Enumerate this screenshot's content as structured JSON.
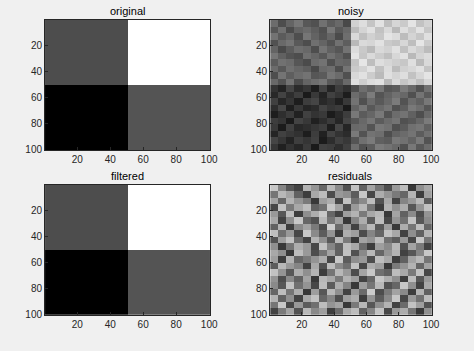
{
  "chart_data": [
    {
      "type": "image",
      "title": "original",
      "x": [
        0.5,
        50.5,
        100.5
      ],
      "y": [
        0.5,
        50.5,
        100.5
      ],
      "cells": [
        [
          30,
          100
        ],
        [
          0,
          33
        ]
      ],
      "zlim": [
        0,
        100
      ],
      "xlim": [
        0.5,
        100.5
      ],
      "ylim": [
        0.5,
        100.5
      ],
      "xticks": [
        20,
        40,
        60,
        80,
        100
      ],
      "yticks": [
        20,
        40,
        60,
        80,
        100
      ]
    },
    {
      "type": "image",
      "title": "noisy",
      "x": [
        0.5,
        5.5,
        10.5,
        15.5,
        20.5,
        25.5,
        30.5,
        35.5,
        40.5,
        45.5,
        50.5,
        55.5,
        60.5,
        65.5,
        70.5,
        75.5,
        80.5,
        85.5,
        90.5,
        95.5,
        100.5
      ],
      "y": [
        0.5,
        5.5,
        10.5,
        15.5,
        20.5,
        25.5,
        30.5,
        35.5,
        40.5,
        45.5,
        50.5,
        55.5,
        60.5,
        65.5,
        70.5,
        75.5,
        80.5,
        85.5,
        90.5,
        95.5,
        100.5
      ],
      "cells": [
        [
          38,
          18,
          33,
          44,
          25,
          21,
          41,
          28,
          36,
          16,
          101,
          109,
          93,
          112,
          89,
          104,
          97,
          113,
          92,
          102
        ],
        [
          24,
          40,
          17,
          32,
          37,
          29,
          20,
          45,
          26,
          35,
          88,
          103,
          111,
          92,
          106,
          86,
          109,
          98,
          112,
          95
        ],
        [
          42,
          27,
          35,
          19,
          44,
          32,
          23,
          34,
          17,
          39,
          106,
          90,
          101,
          95,
          113,
          108,
          88,
          103,
          94,
          110
        ],
        [
          21,
          36,
          43,
          26,
          18,
          40,
          33,
          22,
          41,
          29,
          86,
          107,
          104,
          112,
          97,
          93,
          105,
          89,
          114,
          98
        ],
        [
          33,
          16,
          28,
          39,
          35,
          19,
          43,
          31,
          24,
          42,
          108,
          96,
          87,
          106,
          102,
          111,
          91,
          107,
          99,
          88
        ],
        [
          44,
          31,
          22,
          18,
          40,
          34,
          25,
          41,
          32,
          21,
          113,
          94,
          107,
          98,
          90,
          105,
          112,
          86,
          103,
          108
        ],
        [
          28,
          41,
          37,
          24,
          17,
          38,
          42,
          20,
          35,
          33,
          93,
          114,
          89,
          109,
          104,
          99,
          95,
          110,
          87,
          106
        ],
        [
          37,
          25,
          40,
          34,
          29,
          16,
          36,
          39,
          19,
          43,
          97,
          102,
          112,
          91,
          108,
          88,
          101,
          105,
          111,
          93
        ],
        [
          19,
          43,
          29,
          38,
          42,
          24,
          27,
          44,
          37,
          20,
          105,
          111,
          98,
          87,
          110,
          103,
          109,
          92,
          104,
          113
        ],
        [
          35,
          22,
          42,
          17,
          33,
          39,
          44,
          25,
          18,
          36,
          110,
          99,
          108,
          111,
          86,
          107,
          94,
          102,
          90,
          104
        ],
        [
          2,
          -8,
          13,
          -3,
          4,
          -11,
          12,
          -7,
          9,
          1,
          19,
          39,
          31,
          44,
          24,
          28,
          47,
          36,
          21,
          41
        ],
        [
          -5,
          12,
          -2,
          9,
          -14,
          6,
          -8,
          11,
          3,
          -12,
          38,
          29,
          48,
          23,
          32,
          40,
          35,
          20,
          43,
          27
        ],
        [
          10,
          -6,
          3,
          -12,
          8,
          13,
          -5,
          1,
          -10,
          6,
          42,
          20,
          37,
          26,
          35,
          47,
          22,
          38,
          30,
          45
        ],
        [
          -2,
          14,
          -11,
          5,
          -7,
          -3,
          12,
          4,
          7,
          -14,
          32,
          44,
          25,
          36,
          43,
          21,
          29,
          46,
          39,
          24
        ],
        [
          -12,
          -1,
          7,
          -9,
          11,
          2,
          6,
          -13,
          -4,
          8,
          45,
          27,
          34,
          46,
          22,
          38,
          42,
          31,
          19,
          36
        ],
        [
          8,
          3,
          -14,
          12,
          5,
          -10,
          -2,
          7,
          -6,
          13,
          24,
          35,
          44,
          28,
          37,
          43,
          21,
          25,
          34,
          47
        ],
        [
          6,
          -13,
          10,
          -5,
          -1,
          4,
          9,
          -11,
          14,
          -7,
          36,
          38,
          23,
          45,
          41,
          20,
          27,
          40,
          44,
          31
        ],
        [
          -7,
          11,
          5,
          1,
          -12,
          8,
          -9,
          12,
          2,
          -3,
          46,
          22,
          42,
          39,
          19,
          32,
          37,
          43,
          28,
          40
        ],
        [
          13,
          4,
          -8,
          9,
          3,
          10,
          -13,
          -2,
          11,
          5,
          23,
          40,
          47,
          30,
          27,
          45,
          41,
          32,
          46,
          22
        ],
        [
          4,
          -10,
          2,
          -6,
          7,
          -14,
          11,
          8,
          -1,
          10,
          39,
          21,
          28,
          47,
          42,
          36,
          20,
          45,
          25,
          38
        ]
      ],
      "zlim": [
        -30,
        130
      ],
      "xlim": [
        0.5,
        100.5
      ],
      "ylim": [
        0.5,
        100.5
      ],
      "xticks": [
        20,
        40,
        60,
        80,
        100
      ],
      "yticks": [
        20,
        40,
        60,
        80,
        100
      ]
    },
    {
      "type": "image",
      "title": "filtered",
      "x": [
        0.5,
        50.5,
        100.5
      ],
      "y": [
        0.5,
        50.5,
        100.5
      ],
      "cells": [
        [
          30,
          100
        ],
        [
          0,
          33
        ]
      ],
      "zlim": [
        0,
        100
      ],
      "xlim": [
        0.5,
        100.5
      ],
      "ylim": [
        0.5,
        100.5
      ],
      "xticks": [
        20,
        40,
        60,
        80,
        100
      ],
      "yticks": [
        20,
        40,
        60,
        80,
        100
      ]
    },
    {
      "type": "image",
      "title": "residuals",
      "x": [
        0.5,
        5.5,
        10.5,
        15.5,
        20.5,
        25.5,
        30.5,
        35.5,
        40.5,
        45.5,
        50.5,
        55.5,
        60.5,
        65.5,
        70.5,
        75.5,
        80.5,
        85.5,
        90.5,
        95.5,
        100.5
      ],
      "y": [
        0.5,
        5.5,
        10.5,
        15.5,
        20.5,
        25.5,
        30.5,
        35.5,
        40.5,
        45.5,
        50.5,
        55.5,
        60.5,
        65.5,
        70.5,
        75.5,
        80.5,
        85.5,
        90.5,
        95.5,
        100.5
      ],
      "cells": [
        [
          14,
          1,
          -8,
          -12,
          10,
          4,
          -5,
          11,
          2,
          -9,
          13,
          -6,
          7,
          -2,
          -10,
          5,
          12,
          -14,
          3,
          8
        ],
        [
          -2,
          11,
          7,
          -6,
          -13,
          8,
          12,
          -10,
          5,
          3,
          -7,
          14,
          -11,
          9,
          4,
          -1,
          -5,
          10,
          -13,
          6
        ],
        [
          7,
          -5,
          10,
          4,
          -1,
          -14,
          6,
          9,
          -11,
          13,
          -3,
          2,
          12,
          -9,
          8,
          -12,
          1,
          5,
          11,
          -7
        ],
        [
          -11,
          13,
          -1,
          8,
          12,
          -6,
          -3,
          14,
          7,
          -10,
          5,
          11,
          -2,
          -13,
          10,
          3,
          9,
          -8,
          4,
          13
        ],
        [
          5,
          -8,
          12,
          -13,
          3,
          9,
          14,
          -5,
          -12,
          6,
          10,
          -1,
          8,
          11,
          -14,
          7,
          -6,
          2,
          -10,
          4
        ],
        [
          8,
          -12,
          3,
          14,
          -5,
          -9,
          11,
          -2,
          6,
          -14,
          1,
          9,
          -7,
          12,
          -11,
          4,
          -3,
          13,
          -8,
          2
        ],
        [
          -6,
          10,
          -13,
          2,
          7,
          -1,
          -10,
          15,
          -4,
          5,
          -12,
          3,
          11,
          -8,
          6,
          -14,
          9,
          -2,
          12,
          -5
        ],
        [
          12,
          -3,
          5,
          -11,
          14,
          2,
          -7,
          4,
          -13,
          9,
          6,
          -10,
          1,
          -5,
          13,
          8,
          -12,
          3,
          -6,
          10
        ],
        [
          -9,
          6,
          13,
          -4,
          -12,
          10,
          3,
          -8,
          11,
          -1,
          -14,
          7,
          4,
          12,
          -3,
          -7,
          5,
          -11,
          14,
          -2
        ],
        [
          3,
          -14,
          -2,
          9,
          5,
          -11,
          13,
          1,
          -6,
          12,
          8,
          -4,
          -13,
          6,
          2,
          11,
          -9,
          7,
          -1,
          -12
        ],
        [
          8,
          3,
          -14,
          12,
          5,
          -10,
          -2,
          7,
          -6,
          13,
          -9,
          2,
          11,
          -5,
          4,
          10,
          -12,
          -8,
          1,
          14
        ],
        [
          6,
          -13,
          10,
          -5,
          -1,
          4,
          9,
          -11,
          14,
          -7,
          3,
          5,
          -10,
          12,
          8,
          -13,
          -6,
          7,
          11,
          -2
        ],
        [
          -7,
          11,
          5,
          1,
          -12,
          8,
          -9,
          12,
          2,
          -3,
          13,
          -11,
          9,
          6,
          -14,
          -1,
          4,
          10,
          -5,
          7
        ],
        [
          13,
          4,
          -8,
          9,
          3,
          10,
          -13,
          -2,
          11,
          5,
          -10,
          7,
          14,
          -3,
          -6,
          12,
          8,
          -1,
          13,
          -11
        ],
        [
          4,
          -10,
          2,
          -6,
          7,
          -14,
          11,
          8,
          -1,
          10,
          6,
          -12,
          -5,
          14,
          9,
          3,
          -13,
          12,
          -8,
          5
        ],
        [
          2,
          -8,
          13,
          -3,
          4,
          -11,
          12,
          -7,
          9,
          1,
          -14,
          6,
          -2,
          11,
          -9,
          -5,
          14,
          3,
          -12,
          8
        ],
        [
          -5,
          12,
          -2,
          9,
          -14,
          6,
          -8,
          11,
          3,
          -12,
          5,
          -4,
          15,
          -10,
          -1,
          7,
          2,
          -13,
          10,
          -6
        ],
        [
          10,
          -6,
          3,
          -12,
          8,
          13,
          -5,
          1,
          -10,
          6,
          9,
          -13,
          4,
          -7,
          2,
          14,
          -11,
          5,
          -3,
          12
        ],
        [
          -2,
          14,
          -11,
          5,
          -7,
          -3,
          12,
          4,
          7,
          -14,
          -1,
          11,
          -8,
          3,
          10,
          -12,
          -4,
          13,
          6,
          -9
        ],
        [
          -12,
          -1,
          7,
          -9,
          11,
          2,
          6,
          -13,
          -4,
          8,
          12,
          -6,
          1,
          13,
          -11,
          5,
          9,
          -2,
          -14,
          3
        ]
      ],
      "zlim": [
        -25,
        25
      ],
      "xlim": [
        0.5,
        100.5
      ],
      "ylim": [
        0.5,
        100.5
      ],
      "xticks": [
        20,
        40,
        60,
        80,
        100
      ],
      "yticks": [
        20,
        40,
        60,
        80,
        100
      ]
    }
  ]
}
